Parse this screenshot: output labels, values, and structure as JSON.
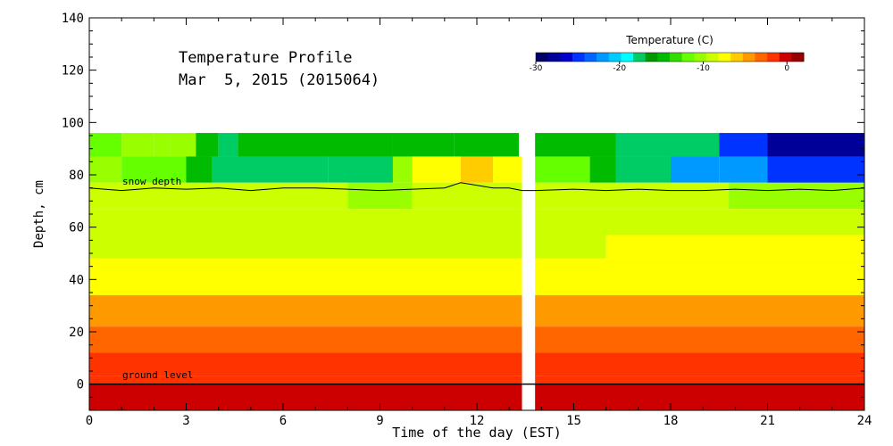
{
  "chart_data": {
    "type": "heatmap",
    "title_line1": "Temperature Profile",
    "title_line2": "Mar  5, 2015 (2015064)",
    "xlabel": "Time of the day (EST)",
    "ylabel": "Depth, cm",
    "xlim": [
      0,
      24
    ],
    "ylim": [
      -10,
      140
    ],
    "x_ticks": [
      "0",
      "3",
      "6",
      "9",
      "12",
      "15",
      "18",
      "21",
      "24"
    ],
    "y_ticks": [
      "0",
      "20",
      "40",
      "60",
      "80",
      "100",
      "120",
      "140"
    ],
    "colorbar": {
      "title": "Temperature (C)",
      "range": [
        -30,
        2
      ],
      "tick_labels": [
        "-30",
        "-20",
        "-10",
        "0"
      ],
      "tick_values": [
        -30,
        -20,
        -10,
        0
      ],
      "colors": [
        "#000066",
        "#000099",
        "#0000cc",
        "#0033ff",
        "#0066ff",
        "#0099ff",
        "#00ccff",
        "#00ffff",
        "#00cc66",
        "#009900",
        "#00bb00",
        "#33dd00",
        "#66ff00",
        "#99ff00",
        "#ccff00",
        "#ffff00",
        "#ffcc00",
        "#ff9900",
        "#ff6600",
        "#ff3300",
        "#cc0000",
        "#990000"
      ]
    },
    "data_gap": [
      13.4,
      13.8
    ],
    "annotations": {
      "snow_depth_label": "snow depth",
      "ground_level_label": "ground level"
    },
    "snow_depth_cm": {
      "x": [
        0,
        1,
        2,
        3,
        4,
        5,
        6,
        7,
        8,
        9,
        10,
        11,
        11.5,
        12,
        12.5,
        13,
        13.4,
        13.8,
        15,
        16,
        17,
        18,
        19,
        20,
        21,
        22,
        23,
        24
      ],
      "y": [
        75,
        74,
        75,
        74.5,
        75,
        74,
        75,
        75,
        74.5,
        74,
        74.5,
        75,
        77,
        76,
        75,
        75,
        74,
        74,
        74.5,
        74,
        74.5,
        74,
        74,
        74.5,
        74,
        74.5,
        74,
        75
      ]
    },
    "layers": [
      {
        "depth_range": [
          87,
          96
        ],
        "segments": [
          {
            "x": [
              0,
              1,
              2,
              2.5,
              3.3,
              4,
              4.6,
              6,
              9.4,
              11.3,
              13.3
            ],
            "temp": [
              -12,
              -11,
              -11,
              -10,
              -15,
              -18,
              -15,
              -15,
              -15,
              -15
            ]
          },
          {
            "x": [
              13.8,
              16.3,
              18,
              19.5,
              21,
              24
            ],
            "temp": [
              -15,
              -18,
              -18,
              -25,
              -28
            ]
          }
        ]
      },
      {
        "depth_range": [
          77,
          87
        ],
        "segments": [
          {
            "x": [
              0,
              1,
              3,
              3.8,
              7.4,
              9.4,
              10,
              11.5,
              12.5,
              13.4
            ],
            "temp": [
              -11,
              -12,
              -15,
              -18,
              -18,
              -10,
              -8,
              -6,
              -8
            ]
          },
          {
            "x": [
              13.8,
              15.5,
              16.3,
              18,
              19.5,
              21,
              24
            ],
            "temp": [
              -12,
              -15,
              -18,
              -22,
              -22,
              -25
            ]
          }
        ]
      },
      {
        "depth_range": [
          67,
          77
        ],
        "segments": [
          {
            "x": [
              0,
              8,
              10,
              13.4
            ],
            "temp": [
              -9,
              -10,
              -9
            ]
          },
          {
            "x": [
              13.8,
              19.8,
              24
            ],
            "temp": [
              -9,
              -10
            ]
          }
        ]
      },
      {
        "depth_range": [
          57,
          67
        ],
        "segments": [
          {
            "x": [
              0,
              13.4
            ],
            "temp": [
              -8.5
            ]
          },
          {
            "x": [
              13.8,
              24
            ],
            "temp": [
              -8.5
            ]
          }
        ]
      },
      {
        "depth_range": [
          48,
          57
        ],
        "segments": [
          {
            "x": [
              0,
              13.4
            ],
            "temp": [
              -8.5
            ]
          },
          {
            "x": [
              13.8,
              16,
              24
            ],
            "temp": [
              -8.5,
              -7
            ]
          }
        ]
      },
      {
        "depth_range": [
          34,
          48
        ],
        "segments": [
          {
            "x": [
              0,
              13.4
            ],
            "temp": [
              -7
            ]
          },
          {
            "x": [
              13.8,
              24
            ],
            "temp": [
              -7
            ]
          }
        ]
      },
      {
        "depth_range": [
          22,
          34
        ],
        "segments": [
          {
            "x": [
              0,
              13.4
            ],
            "temp": [
              -5
            ]
          },
          {
            "x": [
              13.8,
              24
            ],
            "temp": [
              -5
            ]
          }
        ]
      },
      {
        "depth_range": [
          12,
          22
        ],
        "segments": [
          {
            "x": [
              0,
              13.4
            ],
            "temp": [
              -3
            ]
          },
          {
            "x": [
              13.8,
              24
            ],
            "temp": [
              -3
            ]
          }
        ]
      },
      {
        "depth_range": [
          3,
          12
        ],
        "segments": [
          {
            "x": [
              0,
              13.4
            ],
            "temp": [
              -2
            ]
          },
          {
            "x": [
              13.8,
              24
            ],
            "temp": [
              -2
            ]
          }
        ]
      },
      {
        "depth_range": [
          0,
          3
        ],
        "segments": [
          {
            "x": [
              0,
              13.4
            ],
            "temp": [
              -1
            ]
          },
          {
            "x": [
              13.8,
              24
            ],
            "temp": [
              -1
            ]
          }
        ]
      },
      {
        "depth_range": [
          -10,
          0
        ],
        "segments": [
          {
            "x": [
              0,
              13.4
            ],
            "temp": [
              0.5
            ]
          },
          {
            "x": [
              13.8,
              24
            ],
            "temp": [
              0.5
            ]
          }
        ]
      }
    ]
  }
}
